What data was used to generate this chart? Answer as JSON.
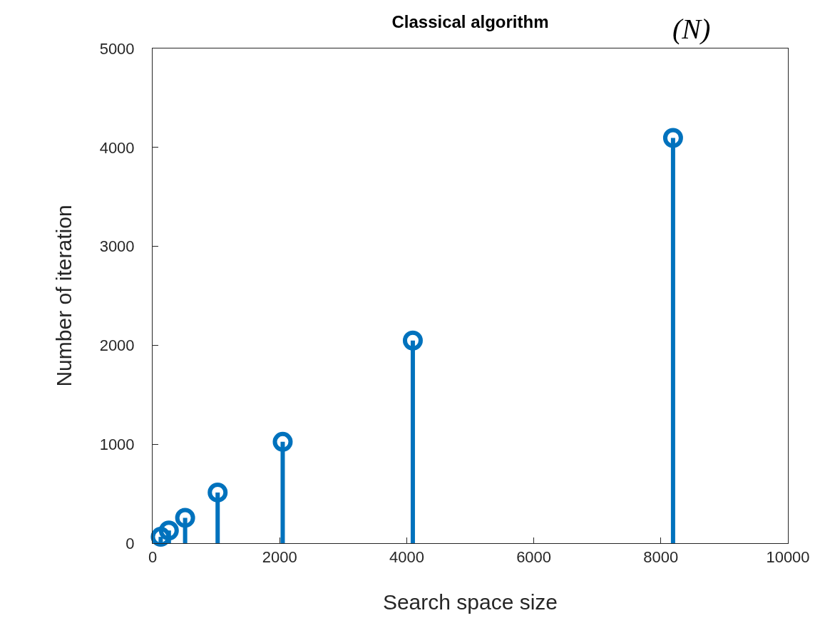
{
  "chart_data": {
    "type": "lollipop",
    "title": "Classical algorithm",
    "xlabel": "Search space size",
    "ylabel": "Number of iteration",
    "annotations": [
      "(N)"
    ],
    "x": [
      128,
      256,
      512,
      1024,
      2048,
      4096,
      8192
    ],
    "series": [
      {
        "color": "#0072bd",
        "values": [
          64,
          128,
          256,
          512,
          1024,
          2048,
          4096
        ]
      }
    ],
    "xlim": [
      0,
      10000
    ],
    "xticks": [
      0,
      2000,
      4000,
      6000,
      8000,
      10000
    ],
    "ylim": [
      0,
      5000
    ],
    "yticks": [
      0,
      1000,
      2000,
      3000,
      4000,
      5000
    ],
    "marker": "circle",
    "line_style": "solid"
  }
}
